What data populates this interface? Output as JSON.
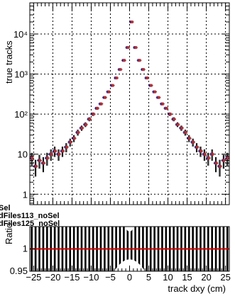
{
  "chart_data": [
    {
      "type": "scatter",
      "title": "",
      "xlabel": "",
      "ylabel": "true tracks",
      "y_scale": "log",
      "ylim": [
        0.55,
        60000
      ],
      "xlim": [
        -26,
        26
      ],
      "grid": true,
      "y_tick_values": [
        1,
        10,
        100,
        1000,
        10000
      ],
      "y_tick_labels": [
        "1",
        "10",
        "10²",
        "10³",
        "10⁴"
      ],
      "legend_fragments": [
        "Sel",
        "dFiles113_noSel",
        "dFiles125_noSel"
      ],
      "series": [
        {
          "name": "dFiles113_noSel",
          "color": "#1a1ab4",
          "x": [
            -25.5,
            -24.5,
            -23.5,
            -22.5,
            -21.5,
            -20.5,
            -19.5,
            -18.5,
            -17.5,
            -16.5,
            -15.5,
            -14.5,
            -13.5,
            -12.5,
            -11.5,
            -10.5,
            -9.5,
            -8.5,
            -7.5,
            -6.5,
            -5.5,
            -4.5,
            -3.5,
            -2.5,
            -1.5,
            -0.5,
            0.5,
            1.5,
            2.5,
            3.5,
            4.5,
            5.5,
            6.5,
            7.5,
            8.5,
            9.5,
            10.5,
            11.5,
            12.5,
            13.5,
            14.5,
            15.5,
            16.5,
            17.5,
            18.5,
            19.5,
            20.5,
            21.5,
            22.5,
            23.5,
            24.5,
            25.5
          ],
          "values": [
            8,
            5,
            7,
            6,
            8,
            10,
            12,
            10,
            12,
            15,
            20,
            25,
            35,
            45,
            55,
            75,
            100,
            140,
            180,
            260,
            360,
            520,
            800,
            1300,
            2200,
            4600,
            20000,
            4600,
            2200,
            1300,
            800,
            520,
            360,
            260,
            180,
            140,
            100,
            75,
            55,
            45,
            35,
            25,
            20,
            15,
            12,
            10,
            8,
            10,
            6,
            5,
            7,
            8
          ]
        },
        {
          "name": "dFiles125_noSel",
          "color": "#c83232",
          "x": [
            -25.5,
            -24.5,
            -23.5,
            -22.5,
            -21.5,
            -20.5,
            -19.5,
            -18.5,
            -17.5,
            -16.5,
            -15.5,
            -14.5,
            -13.5,
            -12.5,
            -11.5,
            -10.5,
            -9.5,
            -8.5,
            -7.5,
            -6.5,
            -5.5,
            -4.5,
            -3.5,
            -2.5,
            -1.5,
            -0.5,
            0.5,
            1.5,
            2.5,
            3.5,
            4.5,
            5.5,
            6.5,
            7.5,
            8.5,
            9.5,
            10.5,
            11.5,
            12.5,
            13.5,
            14.5,
            15.5,
            16.5,
            17.5,
            18.5,
            19.5,
            20.5,
            21.5,
            22.5,
            23.5,
            24.5,
            25.5
          ],
          "values": [
            8,
            5,
            7,
            6,
            8,
            10,
            12,
            10,
            12,
            15,
            20,
            25,
            35,
            45,
            55,
            75,
            100,
            140,
            180,
            260,
            360,
            520,
            800,
            1300,
            2200,
            4600,
            20000,
            4600,
            2200,
            1300,
            800,
            520,
            360,
            260,
            180,
            140,
            100,
            75,
            55,
            45,
            35,
            25,
            20,
            15,
            12,
            10,
            8,
            10,
            6,
            5,
            7,
            8
          ]
        }
      ]
    },
    {
      "type": "line",
      "title": "",
      "xlabel": "track dxy (cm)",
      "ylabel": "Ratio",
      "ylim": [
        0.95,
        1.05
      ],
      "xlim": [
        -26,
        26
      ],
      "grid": true,
      "x_tick_values": [
        -25,
        -20,
        -15,
        -10,
        -5,
        0,
        5,
        10,
        15,
        20,
        25
      ],
      "x_tick_labels": [
        "−25",
        "−20",
        "−15",
        "−10",
        "−5",
        "0",
        "5",
        "10",
        "15",
        "20",
        "25"
      ],
      "y_tick_values": [
        0.95,
        1
      ],
      "y_tick_labels": [
        "0.95",
        "1"
      ],
      "reference_line": 1,
      "reference_color": "#cc0000",
      "series": [
        {
          "name": "",
          "x": [
            -25.5,
            -24.5,
            -23.5,
            -22.5,
            -21.5,
            -20.5,
            -19.5,
            -18.5,
            -17.5,
            -16.5,
            -15.5,
            -14.5,
            -13.5,
            -12.5,
            -11.5,
            -10.5,
            -9.5,
            -8.5,
            -7.5,
            -6.5,
            -5.5,
            -4.5,
            -3.5,
            -2.5,
            -1.5,
            -0.5,
            0.5,
            1.5,
            2.5,
            3.5,
            4.5,
            5.5,
            6.5,
            7.5,
            8.5,
            9.5,
            10.5,
            11.5,
            12.5,
            13.5,
            14.5,
            15.5,
            16.5,
            17.5,
            18.5,
            19.5,
            20.5,
            21.5,
            22.5,
            23.5,
            24.5,
            25.5
          ],
          "values": [
            1,
            1,
            1,
            1,
            1,
            1,
            1,
            1,
            1,
            1,
            1,
            1,
            1,
            1,
            1,
            1,
            1,
            1,
            1,
            1,
            1,
            1,
            1,
            1,
            1,
            1,
            1,
            1,
            1,
            1,
            1,
            1,
            1,
            1,
            1,
            1,
            1,
            1,
            1,
            1,
            1,
            1,
            1,
            1,
            1,
            1,
            1,
            1,
            1,
            1,
            1,
            1
          ]
        }
      ]
    }
  ]
}
